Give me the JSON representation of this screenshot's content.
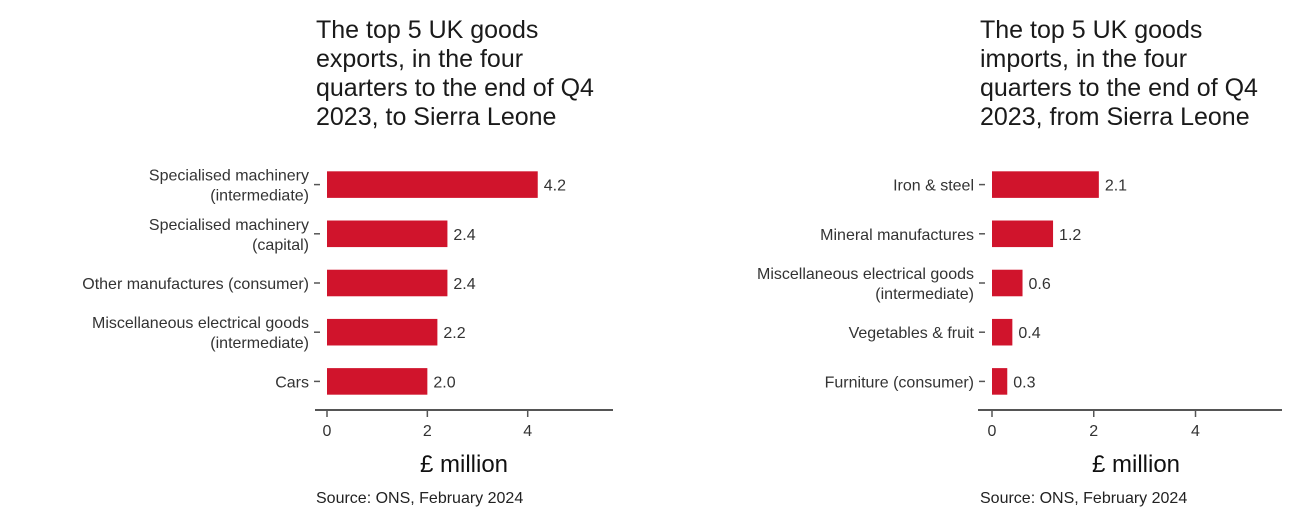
{
  "colors": {
    "bar": "#d0142c",
    "axis": "#555555",
    "text": "#333333"
  },
  "charts": {
    "exports": {
      "title": "The top 5 UK goods\nexports, in the four\nquarters to the end of Q4\n2023, to Sierra Leone",
      "xlabel": "£ million",
      "source": "Source: ONS, February 2024"
    },
    "imports": {
      "title": "The top 5 UK goods\nimports, in the four\nquarters to the end of Q4\n2023, from Sierra Leone",
      "xlabel": "£ million",
      "source": "Source: ONS, February 2024"
    }
  },
  "chart_data": [
    {
      "type": "bar",
      "orientation": "horizontal",
      "title": "The top 5 UK goods exports, in the four quarters to the end of Q4 2023, to Sierra Leone",
      "xlabel": "£ million",
      "categories": [
        [
          "Specialised machinery",
          "(intermediate)"
        ],
        [
          "Specialised machinery",
          "(capital)"
        ],
        [
          "Other manufactures (consumer)"
        ],
        [
          "Miscellaneous electrical goods",
          "(intermediate)"
        ],
        [
          "Cars"
        ]
      ],
      "values": [
        4.2,
        2.4,
        2.4,
        2.2,
        2.0
      ],
      "value_labels": [
        "4.2",
        "2.4",
        "2.4",
        "2.2",
        "2.0"
      ],
      "xlim": [
        0,
        5.7
      ],
      "xticks": [
        0,
        2,
        4
      ],
      "grid": false
    },
    {
      "type": "bar",
      "orientation": "horizontal",
      "title": "The top 5 UK goods imports, in the four quarters to the end of Q4 2023, from Sierra Leone",
      "xlabel": "£ million",
      "categories": [
        [
          "Iron & steel"
        ],
        [
          "Mineral manufactures"
        ],
        [
          "Miscellaneous electrical goods",
          "(intermediate)"
        ],
        [
          "Vegetables & fruit"
        ],
        [
          "Furniture (consumer)"
        ]
      ],
      "values": [
        2.1,
        1.2,
        0.6,
        0.4,
        0.3
      ],
      "value_labels": [
        "2.1",
        "1.2",
        "0.6",
        "0.4",
        "0.3"
      ],
      "xlim": [
        0,
        5.7
      ],
      "xticks": [
        0,
        2,
        4
      ],
      "grid": false
    }
  ]
}
